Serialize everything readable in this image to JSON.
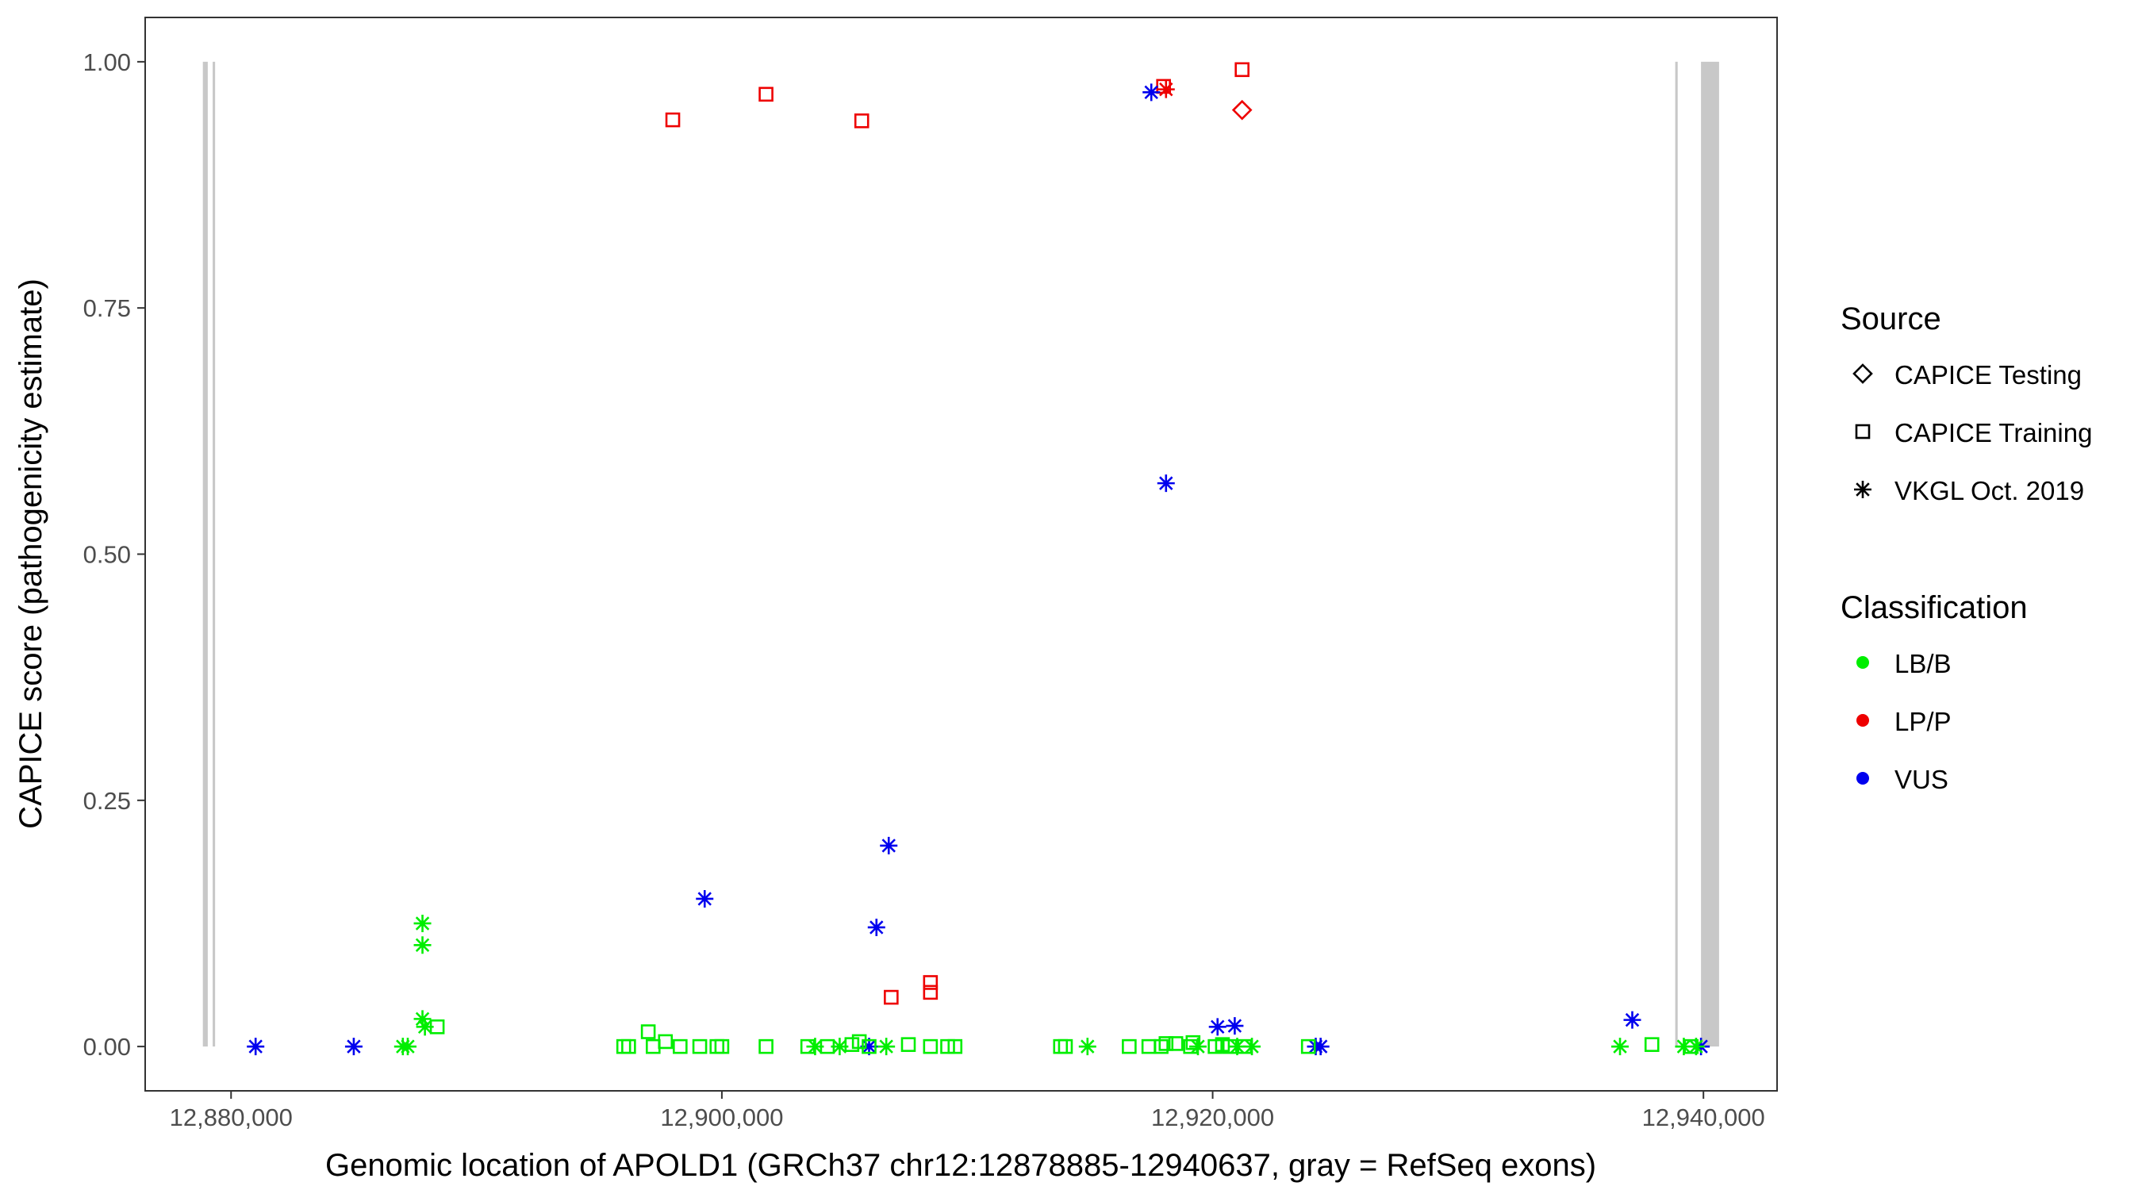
{
  "chart_data": {
    "type": "scatter",
    "xlabel": "Genomic location of APOLD1 (GRCh37 chr12:12878885-12940637, gray = RefSeq exons)",
    "ylabel": "CAPICE score (pathogenicity estimate)",
    "xlim": [
      12876500,
      12943000
    ],
    "ylim": [
      -0.045,
      1.045
    ],
    "x_ticks": [
      12880000,
      12900000,
      12920000,
      12940000
    ],
    "x_tick_labels": [
      "12,880,000",
      "12,900,000",
      "12,920,000",
      "12,940,000"
    ],
    "y_ticks": [
      0,
      0.25,
      0.5,
      0.75,
      1.0
    ],
    "y_tick_labels": [
      "0.00",
      "0.25",
      "0.50",
      "0.75",
      "1.00"
    ],
    "grid": false,
    "exons": [
      {
        "start": 12878850,
        "end": 12879050
      },
      {
        "start": 12879250,
        "end": 12879350
      },
      {
        "start": 12938850,
        "end": 12938950
      },
      {
        "start": 12939900,
        "end": 12940637
      }
    ],
    "exon_color": "#c8c8c8",
    "legends": {
      "source": {
        "title": "Source",
        "placement": "right",
        "items": [
          {
            "label": "CAPICE Testing",
            "shape": "diamond"
          },
          {
            "label": "CAPICE Training",
            "shape": "square"
          },
          {
            "label": "VKGL Oct. 2019",
            "shape": "asterisk"
          }
        ]
      },
      "classification": {
        "title": "Classification",
        "placement": "right",
        "items": [
          {
            "label": "LB/B",
            "color": "#00ee00"
          },
          {
            "label": "LP/P",
            "color": "#ee0000"
          },
          {
            "label": "VUS",
            "color": "#0000ee"
          }
        ]
      }
    },
    "points": [
      {
        "x": 12881000,
        "y": 0.0,
        "shape": "asterisk",
        "class": "VUS"
      },
      {
        "x": 12885000,
        "y": 0.0,
        "shape": "asterisk",
        "class": "VUS"
      },
      {
        "x": 12887000,
        "y": 0.0,
        "shape": "asterisk",
        "class": "LB/B"
      },
      {
        "x": 12887200,
        "y": 0.0,
        "shape": "asterisk",
        "class": "LB/B"
      },
      {
        "x": 12887800,
        "y": 0.125,
        "shape": "asterisk",
        "class": "LB/B"
      },
      {
        "x": 12887800,
        "y": 0.103,
        "shape": "asterisk",
        "class": "LB/B"
      },
      {
        "x": 12887800,
        "y": 0.028,
        "shape": "asterisk",
        "class": "LB/B"
      },
      {
        "x": 12887900,
        "y": 0.02,
        "shape": "asterisk",
        "class": "LB/B"
      },
      {
        "x": 12888400,
        "y": 0.02,
        "shape": "square",
        "class": "LB/B"
      },
      {
        "x": 12898000,
        "y": 0.941,
        "shape": "square",
        "class": "LP/P"
      },
      {
        "x": 12901800,
        "y": 0.967,
        "shape": "square",
        "class": "LP/P"
      },
      {
        "x": 12905700,
        "y": 0.94,
        "shape": "square",
        "class": "LP/P"
      },
      {
        "x": 12906900,
        "y": 0.05,
        "shape": "square",
        "class": "LP/P"
      },
      {
        "x": 12908500,
        "y": 0.065,
        "shape": "square",
        "class": "LP/P"
      },
      {
        "x": 12908500,
        "y": 0.055,
        "shape": "square",
        "class": "LP/P"
      },
      {
        "x": 12918000,
        "y": 0.975,
        "shape": "square",
        "class": "LP/P"
      },
      {
        "x": 12918100,
        "y": 0.972,
        "shape": "asterisk",
        "class": "LP/P"
      },
      {
        "x": 12921200,
        "y": 0.992,
        "shape": "square",
        "class": "LP/P"
      },
      {
        "x": 12921200,
        "y": 0.951,
        "shape": "diamond",
        "class": "LP/P"
      },
      {
        "x": 12917500,
        "y": 0.969,
        "shape": "asterisk",
        "class": "VUS"
      },
      {
        "x": 12918100,
        "y": 0.572,
        "shape": "asterisk",
        "class": "VUS"
      },
      {
        "x": 12899300,
        "y": 0.15,
        "shape": "asterisk",
        "class": "VUS"
      },
      {
        "x": 12906800,
        "y": 0.204,
        "shape": "asterisk",
        "class": "VUS"
      },
      {
        "x": 12906300,
        "y": 0.121,
        "shape": "asterisk",
        "class": "VUS"
      },
      {
        "x": 12906000,
        "y": 0.0,
        "shape": "asterisk",
        "class": "VUS"
      },
      {
        "x": 12920200,
        "y": 0.02,
        "shape": "asterisk",
        "class": "VUS"
      },
      {
        "x": 12920900,
        "y": 0.021,
        "shape": "asterisk",
        "class": "VUS"
      },
      {
        "x": 12924200,
        "y": 0.0,
        "shape": "asterisk",
        "class": "VUS"
      },
      {
        "x": 12924400,
        "y": 0.0,
        "shape": "asterisk",
        "class": "VUS"
      },
      {
        "x": 12937100,
        "y": 0.027,
        "shape": "asterisk",
        "class": "VUS"
      },
      {
        "x": 12939900,
        "y": 0.0,
        "shape": "asterisk",
        "class": "VUS"
      },
      {
        "x": 12896000,
        "y": 0.0,
        "shape": "square",
        "class": "LB/B"
      },
      {
        "x": 12896200,
        "y": 0.0,
        "shape": "square",
        "class": "LB/B"
      },
      {
        "x": 12897000,
        "y": 0.015,
        "shape": "square",
        "class": "LB/B"
      },
      {
        "x": 12897200,
        "y": 0.0,
        "shape": "square",
        "class": "LB/B"
      },
      {
        "x": 12897700,
        "y": 0.005,
        "shape": "square",
        "class": "LB/B"
      },
      {
        "x": 12898300,
        "y": 0.0,
        "shape": "square",
        "class": "LB/B"
      },
      {
        "x": 12899100,
        "y": 0.0,
        "shape": "square",
        "class": "LB/B"
      },
      {
        "x": 12899800,
        "y": 0.0,
        "shape": "square",
        "class": "LB/B"
      },
      {
        "x": 12900000,
        "y": 0.0,
        "shape": "square",
        "class": "LB/B"
      },
      {
        "x": 12901800,
        "y": 0.0,
        "shape": "square",
        "class": "LB/B"
      },
      {
        "x": 12903500,
        "y": 0.0,
        "shape": "square",
        "class": "LB/B"
      },
      {
        "x": 12903800,
        "y": 0.0,
        "shape": "asterisk",
        "class": "LB/B"
      },
      {
        "x": 12904300,
        "y": 0.0,
        "shape": "square",
        "class": "LB/B"
      },
      {
        "x": 12904800,
        "y": 0.0,
        "shape": "asterisk",
        "class": "LB/B"
      },
      {
        "x": 12905300,
        "y": 0.002,
        "shape": "square",
        "class": "LB/B"
      },
      {
        "x": 12905600,
        "y": 0.005,
        "shape": "square",
        "class": "LB/B"
      },
      {
        "x": 12906000,
        "y": 0.0,
        "shape": "square",
        "class": "LB/B"
      },
      {
        "x": 12906700,
        "y": 0.0,
        "shape": "asterisk",
        "class": "LB/B"
      },
      {
        "x": 12907600,
        "y": 0.002,
        "shape": "square",
        "class": "LB/B"
      },
      {
        "x": 12908500,
        "y": 0.0,
        "shape": "square",
        "class": "LB/B"
      },
      {
        "x": 12909200,
        "y": 0.0,
        "shape": "square",
        "class": "LB/B"
      },
      {
        "x": 12909500,
        "y": 0.0,
        "shape": "square",
        "class": "LB/B"
      },
      {
        "x": 12913800,
        "y": 0.0,
        "shape": "square",
        "class": "LB/B"
      },
      {
        "x": 12914000,
        "y": 0.0,
        "shape": "square",
        "class": "LB/B"
      },
      {
        "x": 12914900,
        "y": 0.0,
        "shape": "asterisk",
        "class": "LB/B"
      },
      {
        "x": 12916600,
        "y": 0.0,
        "shape": "square",
        "class": "LB/B"
      },
      {
        "x": 12917400,
        "y": 0.0,
        "shape": "square",
        "class": "LB/B"
      },
      {
        "x": 12917900,
        "y": 0.0,
        "shape": "square",
        "class": "LB/B"
      },
      {
        "x": 12918100,
        "y": 0.003,
        "shape": "square",
        "class": "LB/B"
      },
      {
        "x": 12918500,
        "y": 0.003,
        "shape": "square",
        "class": "LB/B"
      },
      {
        "x": 12919100,
        "y": 0.0,
        "shape": "square",
        "class": "LB/B"
      },
      {
        "x": 12919200,
        "y": 0.004,
        "shape": "square",
        "class": "LB/B"
      },
      {
        "x": 12919400,
        "y": 0.0,
        "shape": "asterisk",
        "class": "LB/B"
      },
      {
        "x": 12920100,
        "y": 0.0,
        "shape": "square",
        "class": "LB/B"
      },
      {
        "x": 12920400,
        "y": 0.002,
        "shape": "square",
        "class": "LB/B"
      },
      {
        "x": 12920700,
        "y": 0.0,
        "shape": "square",
        "class": "LB/B"
      },
      {
        "x": 12921000,
        "y": 0.0,
        "shape": "asterisk",
        "class": "LB/B"
      },
      {
        "x": 12921300,
        "y": 0.0,
        "shape": "square",
        "class": "LB/B"
      },
      {
        "x": 12921600,
        "y": 0.0,
        "shape": "asterisk",
        "class": "LB/B"
      },
      {
        "x": 12923900,
        "y": 0.0,
        "shape": "square",
        "class": "LB/B"
      },
      {
        "x": 12936600,
        "y": 0.0,
        "shape": "asterisk",
        "class": "LB/B"
      },
      {
        "x": 12937900,
        "y": 0.002,
        "shape": "square",
        "class": "LB/B"
      },
      {
        "x": 12939200,
        "y": 0.0,
        "shape": "asterisk",
        "class": "LB/B"
      },
      {
        "x": 12939500,
        "y": 0.0,
        "shape": "square",
        "class": "LB/B"
      },
      {
        "x": 12939700,
        "y": 0.0,
        "shape": "asterisk",
        "class": "LB/B"
      }
    ]
  }
}
